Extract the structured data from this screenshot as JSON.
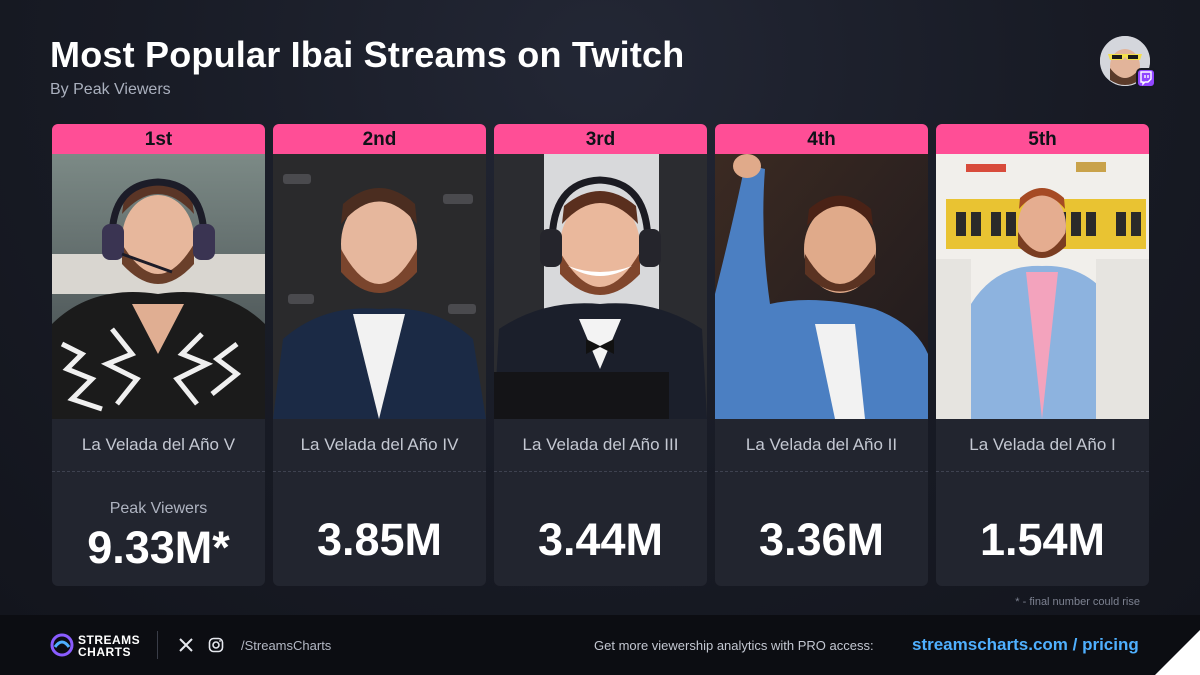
{
  "header": {
    "title": "Most Popular Ibai Streams on Twitch",
    "subtitle": "By Peak Viewers"
  },
  "chart_data": {
    "type": "table",
    "title": "Most Popular Ibai Streams on Twitch",
    "subtitle": "By Peak Viewers",
    "metric_label": "Peak Viewers",
    "unit": "M",
    "categories": [
      "La Velada del Año V",
      "La Velada del Año IV",
      "La Velada del Año III",
      "La Velada del Año II",
      "La Velada del Año I"
    ],
    "ranks": [
      "1st",
      "2nd",
      "3rd",
      "4th",
      "5th"
    ],
    "values": [
      9.33,
      3.85,
      3.44,
      3.36,
      1.54
    ],
    "value_labels": [
      "9.33M*",
      "3.85M",
      "3.44M",
      "3.36M",
      "1.54M"
    ]
  },
  "cards": [
    {
      "rank": "1st",
      "name": "La Velada del Año V",
      "value": "9.33M*",
      "peak_label": "Peak Viewers"
    },
    {
      "rank": "2nd",
      "name": "La Velada del Año IV",
      "value": "3.85M"
    },
    {
      "rank": "3rd",
      "name": "La Velada del Año III",
      "value": "3.44M"
    },
    {
      "rank": "4th",
      "name": "La Velada del Año II",
      "value": "3.36M"
    },
    {
      "rank": "5th",
      "name": "La Velada del Año I",
      "value": "1.54M"
    }
  ],
  "footnote": "* - final number could rise",
  "footer": {
    "brand_line1": "STREAMS",
    "brand_line2": "CHARTS",
    "handle": "/StreamsCharts",
    "promo": "Get more viewership analytics with PRO access:",
    "link": "streamscharts.com / pricing"
  },
  "colors": {
    "accent": "#ff4e96",
    "background": "#161922",
    "card": "#22252f",
    "link": "#4fb0ff",
    "twitch": "#9146ff"
  },
  "icons": [
    "avatar",
    "twitch-icon",
    "streamscharts-logo-icon",
    "x-icon",
    "instagram-icon"
  ]
}
